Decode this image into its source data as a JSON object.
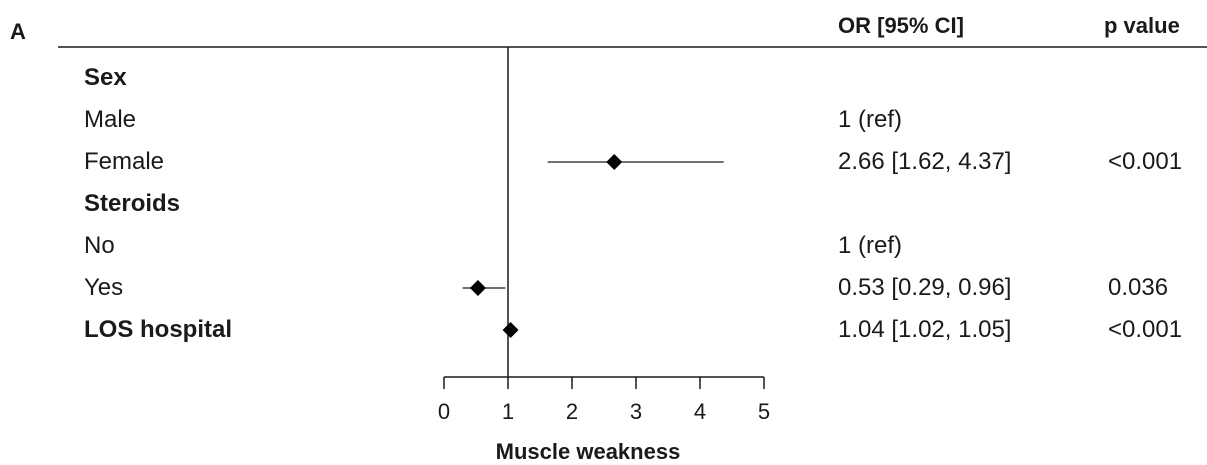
{
  "panel_label": "A",
  "headers": {
    "or": "OR [95% CI]",
    "p": "p value"
  },
  "chart_data": {
    "type": "forest",
    "xlabel": "Muscle weakness",
    "xlim": [
      0,
      5
    ],
    "xticks": [
      0,
      1,
      2,
      3,
      4,
      5
    ],
    "reference_line": 1,
    "rows": [
      {
        "label": "Sex",
        "bold": true,
        "or_text": "",
        "p": ""
      },
      {
        "label": "Male",
        "bold": false,
        "or_text": "1 (ref)",
        "p": ""
      },
      {
        "label": "Female",
        "bold": false,
        "or_text": "2.66 [1.62, 4.37]",
        "p": "<0.001",
        "or": 2.66,
        "lo": 1.62,
        "hi": 4.37
      },
      {
        "label": "Steroids",
        "bold": true,
        "or_text": "",
        "p": ""
      },
      {
        "label": "No",
        "bold": false,
        "or_text": "1 (ref)",
        "p": ""
      },
      {
        "label": "Yes",
        "bold": false,
        "or_text": "0.53 [0.29, 0.96]",
        "p": "0.036",
        "or": 0.53,
        "lo": 0.29,
        "hi": 0.96
      },
      {
        "label": "LOS hospital",
        "bold": true,
        "or_text": "1.04 [1.02, 1.05]",
        "p": "<0.001",
        "or": 1.04,
        "lo": 1.02,
        "hi": 1.05
      }
    ]
  }
}
